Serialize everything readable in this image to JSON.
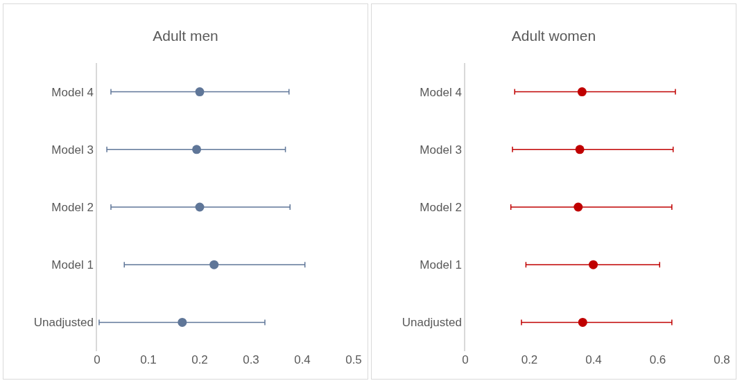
{
  "chart_data": [
    {
      "type": "scatter",
      "title": "Adult men",
      "orientation": "horizontal",
      "categories": [
        "Model 4",
        "Model 3",
        "Model 2",
        "Model 1",
        "Unadjusted"
      ],
      "marker": "circle",
      "grid": false,
      "series": [
        {
          "color": "#5f7698",
          "values": [
            0.2,
            0.194,
            0.2,
            0.228,
            0.166
          ],
          "errors": [
            [
              0.027,
              0.374
            ],
            [
              0.019,
              0.367
            ],
            [
              0.027,
              0.376
            ],
            [
              0.053,
              0.405
            ],
            [
              0.004,
              0.327
            ]
          ]
        }
      ],
      "xlim": [
        0,
        0.5
      ],
      "xticks": [
        0,
        0.1,
        0.2,
        0.3,
        0.4,
        0.5
      ]
    },
    {
      "type": "scatter",
      "title": "Adult women",
      "orientation": "horizontal",
      "categories": [
        "Model 4",
        "Model 3",
        "Model 2",
        "Model 1",
        "Unadjusted"
      ],
      "marker": "circle",
      "grid": false,
      "series": [
        {
          "color": "#c00000",
          "values": [
            0.364,
            0.357,
            0.352,
            0.399,
            0.366
          ],
          "errors": [
            [
              0.154,
              0.655
            ],
            [
              0.147,
              0.648
            ],
            [
              0.142,
              0.644
            ],
            [
              0.189,
              0.606
            ],
            [
              0.175,
              0.644
            ]
          ]
        }
      ],
      "xlim": [
        0,
        0.8
      ],
      "xticks": [
        0,
        0.2,
        0.4,
        0.6,
        0.8
      ]
    }
  ]
}
